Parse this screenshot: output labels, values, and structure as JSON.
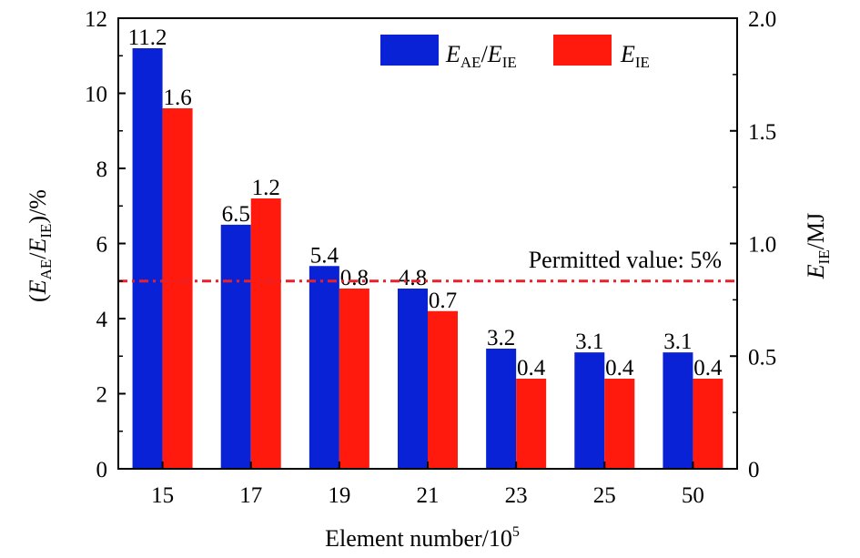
{
  "chart_data": {
    "type": "bar",
    "categories": [
      "15",
      "17",
      "19",
      "21",
      "23",
      "25",
      "50"
    ],
    "series": [
      {
        "name": "E_AE/E_IE",
        "axis": "left",
        "color": "#0a22d6",
        "values": [
          11.2,
          6.5,
          5.4,
          4.8,
          3.2,
          3.1,
          3.1
        ],
        "labels": [
          "11.2",
          "6.5",
          "5.4",
          "4.8",
          "3.2",
          "3.1",
          "3.1"
        ]
      },
      {
        "name": "E_IE",
        "axis": "right",
        "color": "#ff1a0d",
        "values": [
          1.6,
          1.2,
          0.8,
          0.7,
          0.4,
          0.4,
          0.4
        ],
        "labels": [
          "1.6",
          "1.2",
          "0.8",
          "0.7",
          "0.4",
          "0.4",
          "0.4"
        ]
      }
    ],
    "ylim_left": [
      0,
      12
    ],
    "ylim_right": [
      0,
      2.0
    ],
    "yticks_left": [
      "0",
      "2",
      "4",
      "6",
      "8",
      "10",
      "12"
    ],
    "yticks_right": [
      "0",
      "0.5",
      "1.0",
      "1.5",
      "2.0"
    ],
    "reference_line": {
      "value": 5,
      "axis": "left",
      "label": "Permitted value: 5%",
      "color": "#e8202a",
      "style": "dash-dot"
    },
    "xlabel": {
      "main": "Element number/10",
      "sup": "5"
    },
    "ylabel_left": {
      "open": "(",
      "e1": "E",
      "s1": "AE",
      "slash": "/",
      "e2": "E",
      "s2": "IE",
      "close": ")/%"
    },
    "ylabel_right": {
      "e": "E",
      "s": "IE",
      "rest": "/MJ"
    },
    "legend": {
      "placement": "top-right",
      "items": [
        {
          "e1": "E",
          "s1": "AE",
          "slash": "/",
          "e2": "E",
          "s2": "IE",
          "color": "#0a22d6"
        },
        {
          "e1": "E",
          "s1": "IE",
          "color": "#ff1a0d"
        }
      ]
    },
    "grid": false
  }
}
